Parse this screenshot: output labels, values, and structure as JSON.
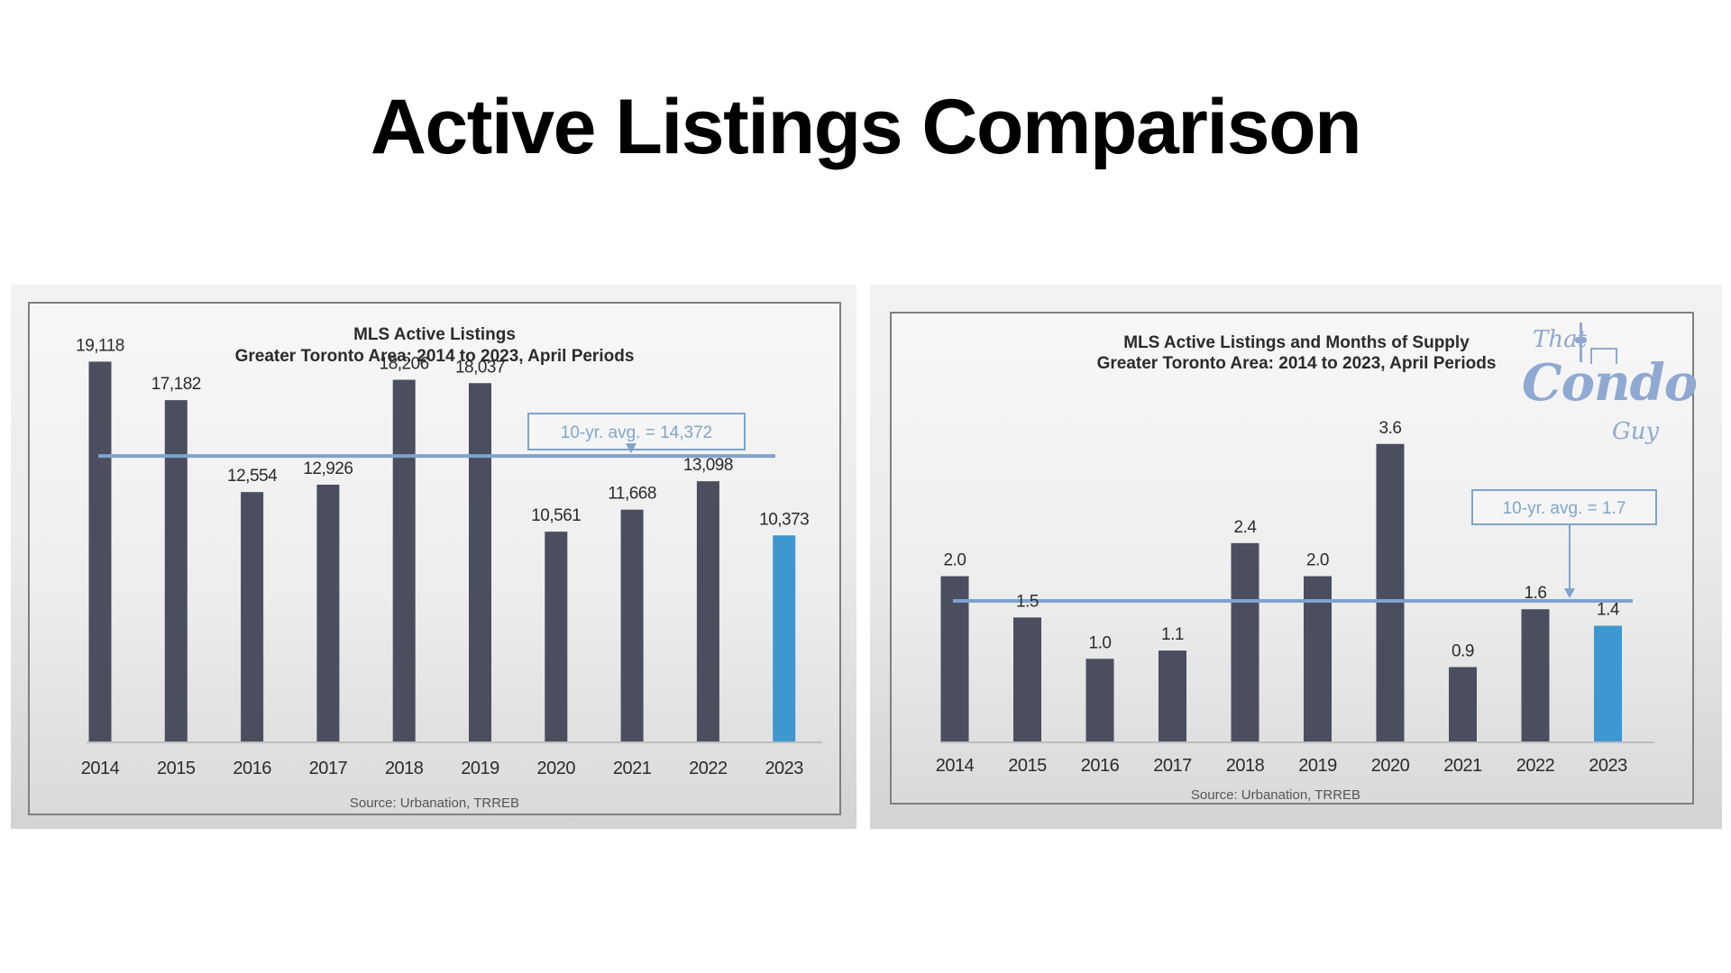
{
  "page": {
    "title": "Active Listings Comparison"
  },
  "logo": {
    "line1": "That",
    "line2": "Condo",
    "line3": "Guy"
  },
  "colors": {
    "bar": "#4a4e5e",
    "highlight": "#3d97d1",
    "avg_line": "#7ea3cc",
    "text": "#2b2b2b"
  },
  "chart_data": [
    {
      "type": "bar",
      "title": "MLS Active Listings",
      "subtitle": "Greater Toronto Area: 2014 to 2023, April Periods",
      "categories": [
        "2014",
        "2015",
        "2016",
        "2017",
        "2018",
        "2019",
        "2020",
        "2021",
        "2022",
        "2023"
      ],
      "values": [
        19118,
        17182,
        12554,
        12926,
        18206,
        18037,
        10561,
        11668,
        13098,
        10373
      ],
      "value_labels": [
        "19,118",
        "17,182",
        "12,554",
        "12,926",
        "18,206",
        "18,037",
        "10,561",
        "11,668",
        "13,098",
        "10,373"
      ],
      "highlight_index": 9,
      "average": {
        "value": 14372,
        "label": "10-yr. avg. = 14,372"
      },
      "ylim": [
        0,
        19500
      ],
      "grid": false,
      "source": "Source: Urbanation, TRREB"
    },
    {
      "type": "bar",
      "title": "MLS Active Listings and Months of Supply",
      "subtitle": "Greater Toronto Area: 2014 to 2023, April Periods",
      "categories": [
        "2014",
        "2015",
        "2016",
        "2017",
        "2018",
        "2019",
        "2020",
        "2021",
        "2022",
        "2023"
      ],
      "values": [
        2.0,
        1.5,
        1.0,
        1.1,
        2.4,
        2.0,
        3.6,
        0.9,
        1.6,
        1.4
      ],
      "value_labels": [
        "2.0",
        "1.5",
        "1.0",
        "1.1",
        "2.4",
        "2.0",
        "3.6",
        "0.9",
        "1.6",
        "1.4"
      ],
      "highlight_index": 9,
      "average": {
        "value": 1.7,
        "label": "10-yr. avg. = 1.7"
      },
      "ylim": [
        0,
        3.75
      ],
      "grid": false,
      "source": "Source: Urbanation, TRREB"
    }
  ]
}
